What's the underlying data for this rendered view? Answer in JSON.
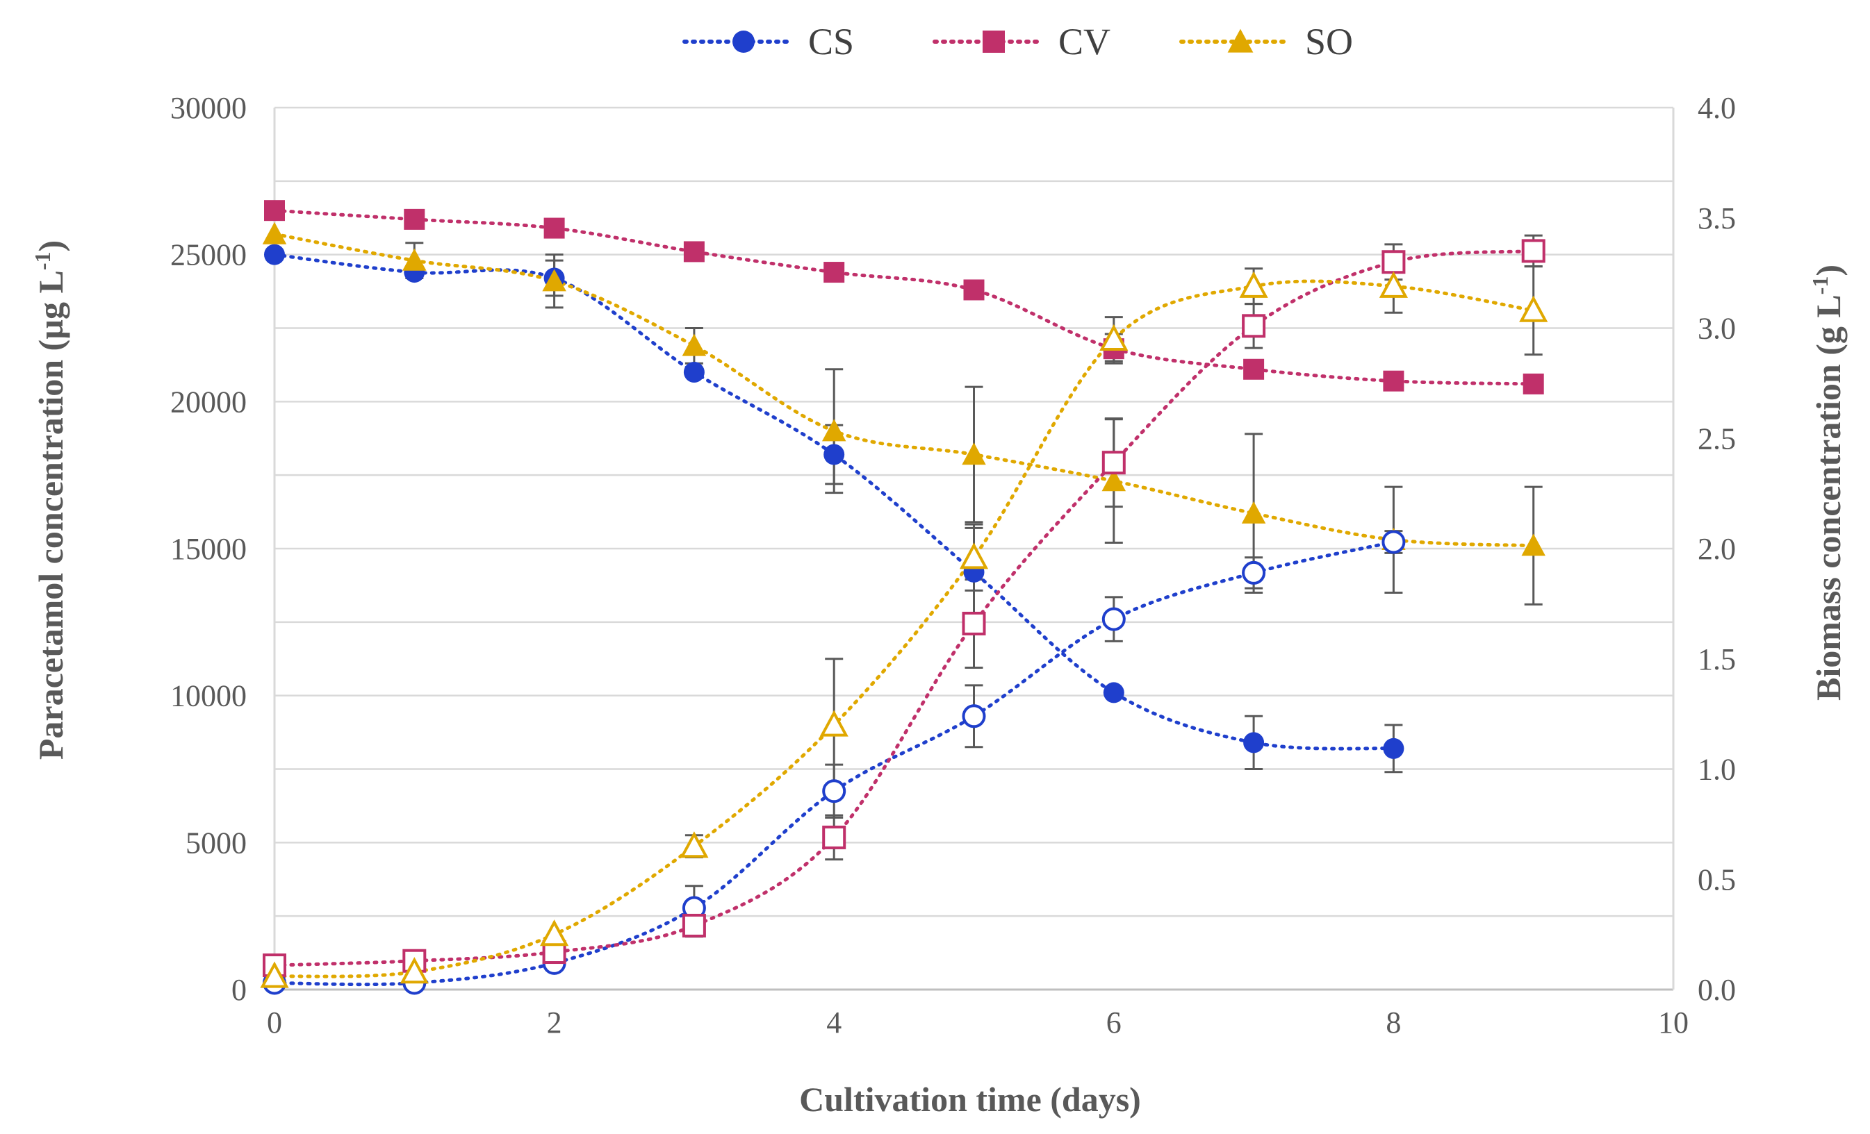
{
  "chart_data": {
    "type": "line",
    "title": "",
    "xlabel": "Cultivation  time (days)",
    "ylabel_left": {
      "main": "Paracetamol  concentration  (µg L",
      "sup": "-1",
      "close": ")"
    },
    "ylabel_right": {
      "main": "Biomass  concentration  (g L",
      "sup": "-1",
      "close": ")"
    },
    "xlim": [
      0,
      10
    ],
    "ylim_left": [
      0,
      30000
    ],
    "ylim_right": [
      0,
      4
    ],
    "x_ticks": [
      "0",
      "2",
      "4",
      "6",
      "8",
      "10"
    ],
    "y_left_ticks": [
      "0",
      "5000",
      "10000",
      "15000",
      "20000",
      "25000",
      "30000"
    ],
    "y_right_ticks": [
      "0.0",
      "0.5",
      "1.0",
      "1.5",
      "2.0",
      "2.5",
      "3.0",
      "3.5",
      "4.0"
    ],
    "grid": "horizontal",
    "legend_position": "top-center",
    "legend": [
      {
        "name": "CS",
        "color": "#1f3fcc",
        "marker": "circle"
      },
      {
        "name": "CV",
        "color": "#c0306a",
        "marker": "square"
      },
      {
        "name": "SO",
        "color": "#e0a800",
        "marker": "triangle"
      }
    ],
    "series": [
      {
        "name": "CS",
        "kind": "paracetamol",
        "axis": "left",
        "filled": true,
        "color": "#1f3fcc",
        "marker": "circle",
        "x": [
          0,
          1,
          2,
          3,
          4,
          5,
          6,
          7,
          8
        ],
        "y": [
          25000,
          24400,
          24200,
          21000,
          18200,
          14200,
          10100,
          8400,
          8200
        ],
        "err": [
          0,
          0,
          600,
          0,
          1000,
          1500,
          0,
          900,
          800
        ]
      },
      {
        "name": "CV",
        "kind": "paracetamol",
        "axis": "left",
        "filled": true,
        "color": "#c0306a",
        "marker": "square",
        "x": [
          0,
          1,
          2,
          3,
          4,
          5,
          6,
          7,
          8,
          9
        ],
        "y": [
          26500,
          26200,
          25900,
          25100,
          24400,
          23800,
          21800,
          21100,
          20700,
          20600
        ],
        "err": [
          0,
          0,
          0,
          0,
          0,
          0,
          500,
          0,
          0,
          0
        ]
      },
      {
        "name": "SO",
        "kind": "paracetamol",
        "axis": "left",
        "filled": true,
        "color": "#e0a800",
        "marker": "triangle",
        "x": [
          0,
          1,
          2,
          3,
          4,
          5,
          6,
          7,
          8,
          9
        ],
        "y": [
          25700,
          24800,
          24100,
          21900,
          19000,
          18200,
          17300,
          16200,
          15300,
          15100
        ],
        "err": [
          0,
          600,
          900,
          600,
          2100,
          2300,
          2100,
          2700,
          1800,
          2000
        ]
      },
      {
        "name": "CS",
        "kind": "biomass",
        "axis": "right",
        "filled": false,
        "color": "#1f3fcc",
        "marker": "circle",
        "x": [
          0,
          1,
          2,
          3,
          4,
          5,
          6,
          7,
          8
        ],
        "y": [
          0.03,
          0.03,
          0.12,
          0.37,
          0.9,
          1.24,
          1.68,
          1.89,
          2.03
        ],
        "err": [
          0,
          0,
          0,
          0.1,
          0.12,
          0.14,
          0.1,
          0.07,
          0.05
        ]
      },
      {
        "name": "CV",
        "kind": "biomass",
        "axis": "right",
        "filled": false,
        "color": "#c0306a",
        "marker": "square",
        "x": [
          0,
          1,
          2,
          3,
          4,
          5,
          6,
          7,
          8,
          9
        ],
        "y": [
          0.11,
          0.13,
          0.17,
          0.29,
          0.69,
          1.66,
          2.39,
          3.01,
          3.3,
          3.35
        ],
        "err": [
          0,
          0,
          0,
          0.05,
          0.1,
          0.2,
          0.2,
          0.1,
          0.08,
          0.07
        ]
      },
      {
        "name": "SO",
        "kind": "biomass",
        "axis": "right",
        "filled": false,
        "color": "#e0a800",
        "marker": "triangle",
        "x": [
          0,
          1,
          2,
          3,
          4,
          5,
          6,
          7,
          8,
          9
        ],
        "y": [
          0.06,
          0.08,
          0.25,
          0.65,
          1.2,
          1.96,
          2.95,
          3.19,
          3.19,
          3.08
        ],
        "err": [
          0,
          0,
          0,
          0.05,
          0.3,
          0.15,
          0.1,
          0.08,
          0.12,
          0.2
        ]
      }
    ]
  }
}
